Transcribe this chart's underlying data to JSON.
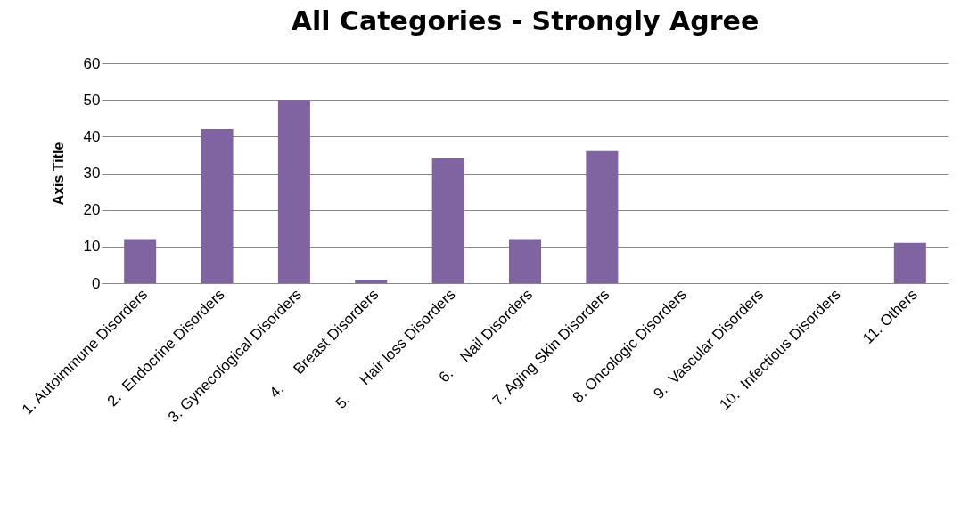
{
  "chart_data": {
    "type": "bar",
    "title": "All Categories - Strongly Agree",
    "ylabel": "Axis Title",
    "categories": [
      "1. Autoimmune Disorders",
      "2.  Endocrine Disorders",
      "3. Gynecological Disorders",
      "4.     Breast Disorders",
      "5.     Hair loss Disorders",
      "6.    Nail Disorders",
      "7. Aging Skin Disorders",
      "8. Oncologic Disorders",
      "9.  Vascular Disorders",
      "10.  Infectious Disorders",
      "11. Others"
    ],
    "values": [
      12,
      42,
      50,
      1,
      34,
      12,
      36,
      0,
      0,
      0,
      11
    ],
    "color": "#8064a2",
    "ylim": [
      0,
      60
    ],
    "yticks": [
      0,
      10,
      20,
      30,
      40,
      50,
      60
    ],
    "grid": "y"
  }
}
